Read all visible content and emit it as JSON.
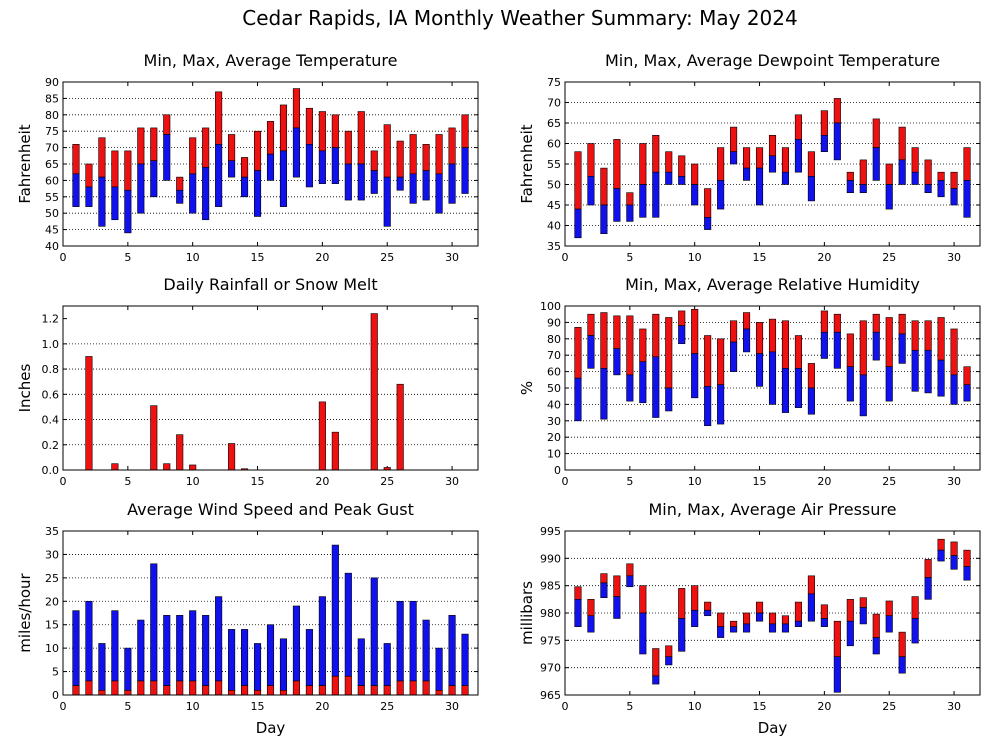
{
  "suptitle": "Cedar Rapids, IA Monthly Weather Summary: May 2024",
  "colors": {
    "upper": "#ee1111",
    "lower": "#1111ee"
  },
  "chart_data": [
    {
      "id": "temperature",
      "type": "bar",
      "style": "floating-range",
      "title": "Min, Max, Average Temperature",
      "xlabel": "",
      "ylabel": "Fahrenheit",
      "xlim": [
        0,
        32
      ],
      "xticks": [
        0,
        5,
        10,
        15,
        20,
        25,
        30
      ],
      "ylim": [
        40,
        90
      ],
      "yticks": [
        40,
        45,
        50,
        55,
        60,
        65,
        70,
        75,
        80,
        85,
        90
      ],
      "grid": true,
      "days": [
        1,
        2,
        3,
        4,
        5,
        6,
        7,
        8,
        9,
        10,
        11,
        12,
        13,
        14,
        15,
        16,
        17,
        18,
        19,
        20,
        21,
        22,
        23,
        24,
        25,
        26,
        27,
        28,
        29,
        30,
        31
      ],
      "min": [
        52,
        52,
        46,
        48,
        44,
        50,
        55,
        60,
        53,
        50,
        48,
        52,
        61,
        55,
        49,
        60,
        52,
        61,
        58,
        59,
        59,
        54,
        54,
        56,
        46,
        57,
        53,
        54,
        50,
        53,
        56
      ],
      "avg": [
        62,
        58,
        61,
        58,
        57,
        65,
        66,
        74,
        57,
        62,
        64,
        71,
        66,
        61,
        63,
        68,
        69,
        76,
        71,
        69,
        70,
        65,
        65,
        63,
        61,
        61,
        62,
        63,
        62,
        65,
        70
      ],
      "max": [
        71,
        65,
        73,
        69,
        69,
        76,
        76,
        80,
        61,
        73,
        76,
        87,
        74,
        67,
        75,
        78,
        83,
        88,
        82,
        81,
        80,
        75,
        81,
        69,
        77,
        72,
        74,
        71,
        74,
        76,
        80
      ]
    },
    {
      "id": "dewpoint",
      "type": "bar",
      "style": "floating-range",
      "title": "Min, Max, Average Dewpoint Temperature",
      "xlabel": "",
      "ylabel": "Fahrenheit",
      "xlim": [
        0,
        32
      ],
      "xticks": [
        0,
        5,
        10,
        15,
        20,
        25,
        30
      ],
      "ylim": [
        35,
        75
      ],
      "yticks": [
        35,
        40,
        45,
        50,
        55,
        60,
        65,
        70,
        75
      ],
      "grid": true,
      "days": [
        1,
        2,
        3,
        4,
        5,
        6,
        7,
        8,
        9,
        10,
        11,
        12,
        13,
        14,
        15,
        16,
        17,
        18,
        19,
        20,
        21,
        22,
        23,
        24,
        25,
        26,
        27,
        28,
        29,
        30,
        31
      ],
      "min": [
        37,
        45,
        38,
        41,
        41,
        42,
        42,
        50,
        50,
        45,
        39,
        44,
        55,
        51,
        45,
        53,
        50,
        53,
        46,
        58,
        56,
        48,
        48,
        51,
        44,
        50,
        50,
        48,
        47,
        45,
        42
      ],
      "avg": [
        44,
        52,
        45,
        49,
        45,
        50,
        53,
        53,
        52,
        50,
        42,
        51,
        58,
        54,
        54,
        57,
        53,
        61,
        52,
        62,
        65,
        51,
        50,
        59,
        50,
        56,
        53,
        50,
        51,
        49,
        51
      ],
      "max": [
        58,
        60,
        54,
        61,
        48,
        60,
        62,
        58,
        57,
        55,
        49,
        59,
        64,
        59,
        59,
        62,
        59,
        67,
        58,
        68,
        71,
        53,
        56,
        66,
        55,
        64,
        59,
        56,
        53,
        53,
        59
      ]
    },
    {
      "id": "rainfall",
      "type": "bar",
      "title": "Daily Rainfall or Snow Melt",
      "xlabel": "",
      "ylabel": "Inches",
      "xlim": [
        0,
        32
      ],
      "xticks": [
        0,
        5,
        10,
        15,
        20,
        25,
        30
      ],
      "ylim": [
        0,
        1.3
      ],
      "yticks": [
        0,
        0.2,
        0.4,
        0.6,
        0.8,
        1.0,
        1.2
      ],
      "ytick_labels": [
        "0.0",
        "0.2",
        "0.4",
        "0.6",
        "0.8",
        "1.0",
        "1.2"
      ],
      "grid": true,
      "days": [
        2,
        4,
        7,
        8,
        9,
        10,
        13,
        14,
        20,
        21,
        24,
        25,
        26
      ],
      "values": [
        0.9,
        0.05,
        0.51,
        0.05,
        0.28,
        0.04,
        0.21,
        0.01,
        0.54,
        0.3,
        1.24,
        0.02,
        0.68
      ]
    },
    {
      "id": "humidity",
      "type": "bar",
      "style": "floating-range",
      "title": "Min, Max, Average Relative Humidity",
      "xlabel": "",
      "ylabel": "%",
      "xlim": [
        0,
        32
      ],
      "xticks": [
        0,
        5,
        10,
        15,
        20,
        25,
        30
      ],
      "ylim": [
        0,
        100
      ],
      "yticks": [
        0,
        10,
        20,
        30,
        40,
        50,
        60,
        70,
        80,
        90,
        100
      ],
      "grid": true,
      "days": [
        1,
        2,
        3,
        4,
        5,
        6,
        7,
        8,
        9,
        10,
        11,
        12,
        13,
        14,
        15,
        16,
        17,
        18,
        19,
        20,
        21,
        22,
        23,
        24,
        25,
        26,
        27,
        28,
        29,
        30,
        31
      ],
      "min": [
        30,
        62,
        31,
        58,
        42,
        41,
        32,
        36,
        77,
        44,
        27,
        28,
        60,
        72,
        51,
        40,
        35,
        38,
        34,
        68,
        62,
        42,
        33,
        67,
        42,
        65,
        48,
        47,
        45,
        40,
        42
      ],
      "avg": [
        56,
        82,
        62,
        74,
        58,
        66,
        69,
        50,
        88,
        71,
        51,
        52,
        78,
        86,
        71,
        72,
        62,
        62,
        50,
        84,
        84,
        63,
        58,
        84,
        63,
        83,
        73,
        73,
        67,
        58,
        52
      ],
      "max": [
        87,
        95,
        96,
        94,
        94,
        86,
        95,
        93,
        97,
        98,
        82,
        80,
        91,
        96,
        90,
        92,
        91,
        82,
        65,
        97,
        95,
        83,
        91,
        95,
        93,
        95,
        91,
        91,
        93,
        86,
        63
      ]
    },
    {
      "id": "wind",
      "type": "bar",
      "style": "stacked",
      "title": "Average Wind Speed and Peak Gust",
      "xlabel": "Day",
      "ylabel": "miles/hour",
      "xlim": [
        0,
        32
      ],
      "xticks": [
        0,
        5,
        10,
        15,
        20,
        25,
        30
      ],
      "ylim": [
        0,
        35
      ],
      "yticks": [
        0,
        5,
        10,
        15,
        20,
        25,
        30,
        35
      ],
      "grid": true,
      "days": [
        1,
        2,
        3,
        4,
        5,
        6,
        7,
        8,
        9,
        10,
        11,
        12,
        13,
        14,
        15,
        16,
        17,
        18,
        19,
        20,
        21,
        22,
        23,
        24,
        25,
        26,
        27,
        28,
        29,
        30,
        31
      ],
      "average": [
        2,
        3,
        1,
        3,
        1,
        3,
        3,
        2,
        3,
        3,
        2,
        3,
        1,
        2,
        1,
        2,
        1,
        3,
        2,
        2,
        4,
        4,
        2,
        2,
        2,
        3,
        3,
        3,
        1,
        2,
        2
      ],
      "peak_gust": [
        18,
        20,
        11,
        18,
        10,
        16,
        28,
        17,
        17,
        18,
        17,
        21,
        14,
        14,
        11,
        15,
        12,
        19,
        14,
        21,
        32,
        26,
        12,
        25,
        11,
        20,
        20,
        16,
        10,
        17,
        13
      ]
    },
    {
      "id": "pressure",
      "type": "bar",
      "style": "floating-range",
      "title": "Min, Max, Average Air Pressure",
      "xlabel": "Day",
      "ylabel": "millibars",
      "xlim": [
        0,
        32
      ],
      "xticks": [
        0,
        5,
        10,
        15,
        20,
        25,
        30
      ],
      "ylim": [
        965,
        995
      ],
      "yticks": [
        965,
        970,
        975,
        980,
        985,
        990,
        995
      ],
      "grid": true,
      "days": [
        1,
        2,
        3,
        4,
        5,
        6,
        7,
        8,
        9,
        10,
        11,
        12,
        13,
        14,
        15,
        16,
        17,
        18,
        19,
        20,
        21,
        22,
        23,
        24,
        25,
        26,
        27,
        28,
        29,
        30,
        31
      ],
      "min": [
        977.5,
        976.5,
        982.8,
        979.0,
        984.8,
        972.5,
        967.0,
        970.5,
        973.0,
        977.5,
        979.5,
        975.5,
        976.5,
        976.5,
        978.5,
        976.5,
        976.5,
        977.5,
        978.5,
        977.5,
        965.5,
        974.0,
        978.0,
        972.5,
        976.5,
        969.0,
        974.5,
        982.5,
        989.5,
        988.0,
        986.0
      ],
      "avg": [
        982.5,
        979.5,
        985.5,
        983.0,
        986.8,
        980.0,
        968.5,
        972.0,
        979.0,
        980.5,
        980.5,
        977.5,
        977.5,
        978.0,
        980.0,
        978.0,
        978.0,
        978.5,
        983.5,
        979.0,
        972.0,
        978.5,
        981.0,
        975.5,
        979.5,
        972.0,
        979.0,
        986.5,
        991.5,
        990.5,
        988.5
      ],
      "max": [
        984.8,
        982.5,
        987.2,
        986.8,
        989.0,
        985.0,
        973.5,
        974.0,
        984.5,
        985.0,
        982.0,
        980.0,
        978.5,
        980.0,
        982.0,
        980.0,
        979.5,
        982.0,
        986.8,
        981.5,
        978.5,
        982.5,
        982.8,
        979.8,
        982.2,
        976.5,
        983.0,
        989.8,
        993.5,
        993.0,
        991.5
      ]
    }
  ]
}
